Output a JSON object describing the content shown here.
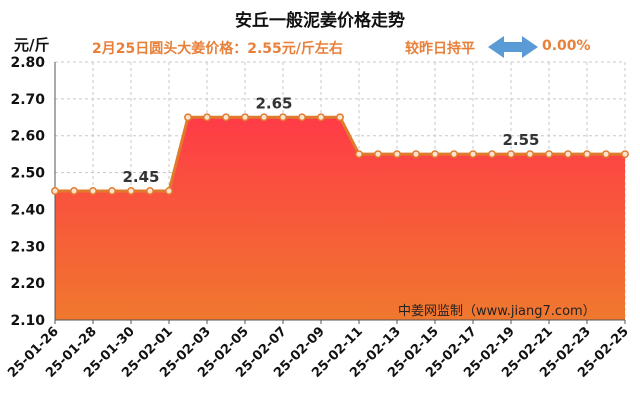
{
  "header": {
    "title": "安丘一般泥姜价格走势",
    "unit": "元/斤",
    "price_line": "2月25日圆头大姜价格：2.55元/斤左右",
    "compare_label": "较昨日持平",
    "change_value": "0.00%",
    "watermark": "中姜网监制（www.jiang7.com）"
  },
  "colors": {
    "line": "#e07b2e",
    "area_top": "#ff3b47",
    "area_bottom": "#f0782e",
    "accent_text": "#e8803a",
    "arrow": "#5b9bd5"
  },
  "icons": {
    "change_indicator": "double-arrow-icon"
  },
  "chart_data": {
    "type": "area",
    "title": "安丘一般泥姜价格走势",
    "ylabel": "元/斤",
    "ylim": [
      2.1,
      2.8
    ],
    "yticks": [
      "2.10",
      "2.20",
      "2.30",
      "2.40",
      "2.50",
      "2.60",
      "2.70",
      "2.80"
    ],
    "grid": true,
    "x": [
      "25-01-26",
      "25-01-27",
      "25-01-28",
      "25-01-29",
      "25-01-30",
      "25-01-31",
      "25-02-01",
      "25-02-02",
      "25-02-03",
      "25-02-04",
      "25-02-05",
      "25-02-06",
      "25-02-07",
      "25-02-08",
      "25-02-09",
      "25-02-10",
      "25-02-11",
      "25-02-12",
      "25-02-13",
      "25-02-14",
      "25-02-15",
      "25-02-16",
      "25-02-17",
      "25-02-18",
      "25-02-19",
      "25-02-20",
      "25-02-21",
      "25-02-22",
      "25-02-23",
      "25-02-24",
      "25-02-25"
    ],
    "xtick_labels": [
      "25-01-26",
      "25-01-28",
      "25-01-30",
      "25-02-01",
      "25-02-03",
      "25-02-05",
      "25-02-07",
      "25-02-09",
      "25-02-11",
      "25-02-13",
      "25-02-15",
      "25-02-17",
      "25-02-19",
      "25-02-21",
      "25-02-23",
      "25-02-25"
    ],
    "series": [
      {
        "values": [
          2.45,
          2.45,
          2.45,
          2.45,
          2.45,
          2.45,
          2.45,
          2.65,
          2.65,
          2.65,
          2.65,
          2.65,
          2.65,
          2.65,
          2.65,
          2.65,
          2.55,
          2.55,
          2.55,
          2.55,
          2.55,
          2.55,
          2.55,
          2.55,
          2.55,
          2.55,
          2.55,
          2.55,
          2.55,
          2.55,
          2.55
        ]
      }
    ],
    "annotations": [
      {
        "x": "25-01-30",
        "label": "2.45"
      },
      {
        "x": "25-02-06",
        "label": "2.65"
      },
      {
        "x": "25-02-19",
        "label": "2.55"
      }
    ]
  }
}
